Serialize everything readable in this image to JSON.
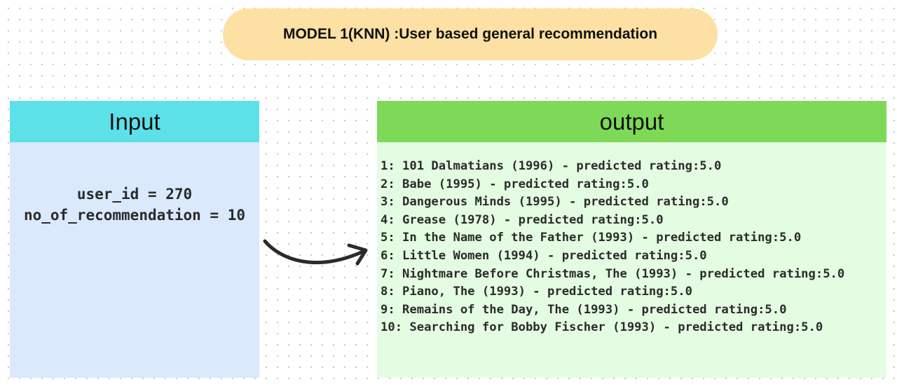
{
  "title": "MODEL 1(KNN) :User based general recommendation",
  "input": {
    "header": "Input",
    "lines": [
      "user_id = 270",
      "no_of_recommendation = 10"
    ]
  },
  "output": {
    "header": "output",
    "items": [
      "1: 101 Dalmatians (1996) - predicted rating:5.0",
      "2: Babe (1995) - predicted rating:5.0",
      "3: Dangerous Minds (1995) - predicted rating:5.0",
      "4: Grease (1978) - predicted rating:5.0",
      "5: In the Name of the Father (1993) - predicted rating:5.0",
      "6: Little Women (1994) - predicted rating:5.0",
      "7: Nightmare Before Christmas, The (1993) - predicted rating:5.0",
      "8: Piano, The (1993) - predicted rating:5.0",
      "9: Remains of the Day, The (1993) - predicted rating:5.0",
      "10: Searching for Bobby Fischer (1993) - predicted rating:5.0"
    ]
  },
  "colors": {
    "title_fill": "#fde0a3",
    "input_header": "#5de1e8",
    "input_body": "#dbe9fd",
    "output_header": "#7ed957",
    "output_body": "#e4fde2",
    "arrow": "#2b2b2b"
  },
  "icons": {
    "arrow": "curved-arrow-right-icon"
  }
}
